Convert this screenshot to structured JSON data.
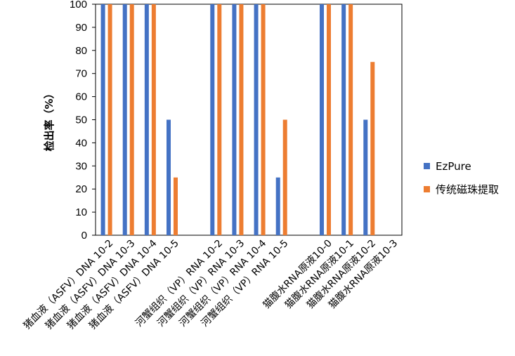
{
  "chart_data": {
    "type": "bar",
    "title": "",
    "xlabel": "",
    "ylabel": "检出率（%）",
    "ylim": [
      0,
      100
    ],
    "yticks": [
      0,
      10,
      20,
      30,
      40,
      50,
      60,
      70,
      80,
      90,
      100
    ],
    "grid": false,
    "legend_position": "right",
    "categories": [
      "猪血液（ASFV）DNA 10-2",
      "猪血液（ASFV）DNA 10-3",
      "猪血液（ASFV）DNA 10-4",
      "猪血液（ASFV）DNA 10-5",
      "",
      "河蟹组织（VP）RNA 10-2",
      "河蟹组织（VP）RNA 10-3",
      "河蟹组织（VP）RNA 10-4",
      "河蟹组织（VP）RNA 10-5",
      "",
      "猫腹水RNA原液10-0",
      "猫腹水RNA原液10-1",
      "猫腹水RNA原液10-2",
      "猫腹水RNA原液10-3"
    ],
    "series": [
      {
        "name": "EzPure",
        "color": "#4472C4",
        "values": [
          100,
          100,
          100,
          50,
          null,
          100,
          100,
          100,
          25,
          null,
          100,
          100,
          50,
          null
        ]
      },
      {
        "name": "传统磁珠提取",
        "color": "#ED7D31",
        "values": [
          100,
          100,
          100,
          25,
          null,
          100,
          100,
          100,
          50,
          null,
          100,
          100,
          75,
          null
        ]
      }
    ]
  }
}
